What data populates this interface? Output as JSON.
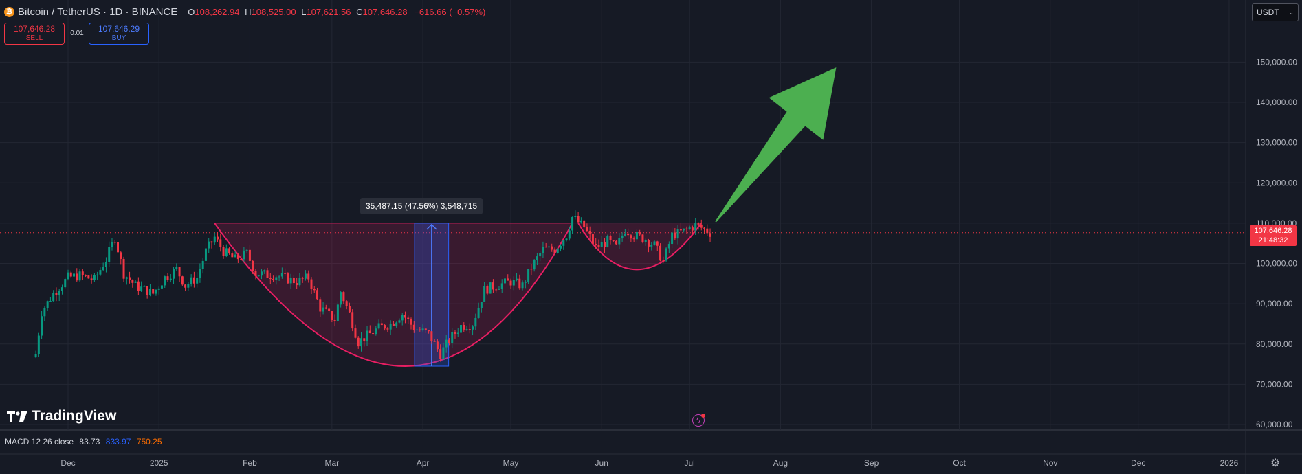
{
  "header": {
    "symbol": "Bitcoin / TetherUS · 1D · BINANCE",
    "icon": "bitcoin-icon",
    "ohlc": {
      "o_label": "O",
      "o": "108,262.94",
      "h_label": "H",
      "h": "108,525.00",
      "l_label": "L",
      "l": "107,621.56",
      "c_label": "C",
      "c": "107,646.28",
      "change": "−616.66 (−0.57%)"
    }
  },
  "trade": {
    "sell_price": "107,646.28",
    "sell_label": "SELL",
    "buy_price": "107,646.29",
    "buy_label": "BUY",
    "spread": "0.01"
  },
  "currency": {
    "label": "USDT"
  },
  "price_tag": {
    "price": "107,646.28",
    "countdown": "21:48:32"
  },
  "measure": {
    "label": "35,487.15 (47.56%) 3,548,715"
  },
  "indicator": {
    "name": "MACD 12 26 close",
    "v1": "83.73",
    "v2": "833.97",
    "v3": "750.25"
  },
  "brand": {
    "name": "TradingView"
  },
  "colors": {
    "bg": "#161a25",
    "up": "#089981",
    "down": "#f23645",
    "accent": "#2962ff",
    "pattern": "#e91e63",
    "arrow": "#4caf50"
  },
  "chart_data": {
    "type": "candlestick",
    "y_axis": {
      "ticks": [
        60000,
        70000,
        80000,
        90000,
        100000,
        110000,
        120000,
        130000,
        140000,
        150000
      ],
      "tick_labels": [
        "60,000.00",
        "70,000.00",
        "80,000.00",
        "90,000.00",
        "100,000.00",
        "110,000.00",
        "120,000.00",
        "130,000.00",
        "140,000.00",
        "150,000.00"
      ]
    },
    "x_axis": {
      "labels": [
        "Dec",
        "2025",
        "Feb",
        "Mar",
        "Apr",
        "May",
        "Jun",
        "Jul",
        "Aug",
        "Sep",
        "Oct",
        "Nov",
        "Dec",
        "2026"
      ]
    },
    "close_path": [
      [
        "2024-11-20",
        77500
      ],
      [
        "2024-11-22",
        88000
      ],
      [
        "2024-11-26",
        92500
      ],
      [
        "2024-12-01",
        96500
      ],
      [
        "2024-12-05",
        97000
      ],
      [
        "2024-12-10",
        96000
      ],
      [
        "2024-12-14",
        101000
      ],
      [
        "2024-12-17",
        106500
      ],
      [
        "2024-12-20",
        97500
      ],
      [
        "2024-12-24",
        94500
      ],
      [
        "2024-12-30",
        92500
      ],
      [
        "2025-01-03",
        96500
      ],
      [
        "2025-01-07",
        98500
      ],
      [
        "2025-01-10",
        94500
      ],
      [
        "2025-01-14",
        96500
      ],
      [
        "2025-01-17",
        103000
      ],
      [
        "2025-01-20",
        106500
      ],
      [
        "2025-01-23",
        103000
      ],
      [
        "2025-01-27",
        101000
      ],
      [
        "2025-01-31",
        102500
      ],
      [
        "2025-02-03",
        97500
      ],
      [
        "2025-02-10",
        97000
      ],
      [
        "2025-02-17",
        95500
      ],
      [
        "2025-02-21",
        96500
      ],
      [
        "2025-02-25",
        89000
      ],
      [
        "2025-03-02",
        86000
      ],
      [
        "2025-03-04",
        93000
      ],
      [
        "2025-03-07",
        87500
      ],
      [
        "2025-03-10",
        80500
      ],
      [
        "2025-03-13",
        82000
      ],
      [
        "2025-03-17",
        84000
      ],
      [
        "2025-03-21",
        85000
      ],
      [
        "2025-03-25",
        87500
      ],
      [
        "2025-03-29",
        84000
      ],
      [
        "2025-04-03",
        82500
      ],
      [
        "2025-04-07",
        77500
      ],
      [
        "2025-04-10",
        81000
      ],
      [
        "2025-04-14",
        84500
      ],
      [
        "2025-04-18",
        85000
      ],
      [
        "2025-04-22",
        93500
      ],
      [
        "2025-04-26",
        94500
      ],
      [
        "2025-05-01",
        95500
      ],
      [
        "2025-05-05",
        94500
      ],
      [
        "2025-05-08",
        99000
      ],
      [
        "2025-05-12",
        103500
      ],
      [
        "2025-05-16",
        103500
      ],
      [
        "2025-05-20",
        107000
      ],
      [
        "2025-05-22",
        111500
      ],
      [
        "2025-05-26",
        109000
      ],
      [
        "2025-05-30",
        104000
      ],
      [
        "2025-06-03",
        105500
      ],
      [
        "2025-06-06",
        104000
      ],
      [
        "2025-06-09",
        108500
      ],
      [
        "2025-06-12",
        107000
      ],
      [
        "2025-06-16",
        106000
      ],
      [
        "2025-06-19",
        104500
      ],
      [
        "2025-06-22",
        100500
      ],
      [
        "2025-06-25",
        107000
      ],
      [
        "2025-06-29",
        108000
      ],
      [
        "2025-07-03",
        109500
      ],
      [
        "2025-07-06",
        108500
      ],
      [
        "2025-07-08",
        107646
      ]
    ],
    "annotations": {
      "cup": {
        "start": [
          "2025-01-20",
          110000
        ],
        "bottom": [
          "2025-03-26",
          74500
        ],
        "end": [
          "2025-05-22",
          110000
        ]
      },
      "handle": {
        "start": [
          "2025-05-24",
          110000
        ],
        "bottom": [
          "2025-06-13",
          98500
        ],
        "end": [
          "2025-07-05",
          110000
        ]
      },
      "resistance": 110000,
      "measure": {
        "date_from": "2025-04-01",
        "date_to": "2025-04-07",
        "low": 74500,
        "high": 110000
      },
      "arrow": {
        "from": [
          "2025-07-08",
          110000
        ],
        "to": [
          "2025-08-20",
          148000
        ]
      }
    }
  }
}
